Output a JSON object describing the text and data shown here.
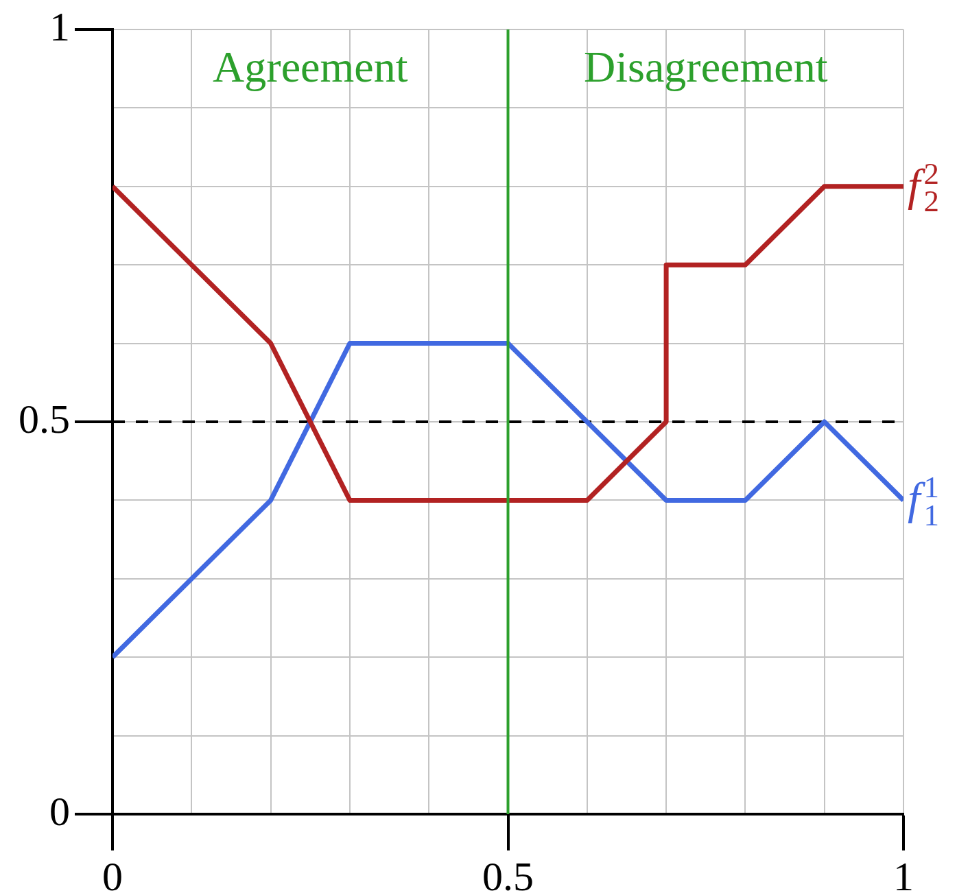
{
  "chart_data": {
    "type": "line",
    "series": [
      {
        "name": "f$_{1}$$^{1}$",
        "color": "#4169e1",
        "x": [
          0,
          0.2,
          0.3,
          0.5,
          0.7,
          0.8,
          0.9,
          1
        ],
        "values": [
          0.2,
          0.4,
          0.6,
          0.6,
          0.4,
          0.4,
          0.5,
          0.4
        ]
      },
      {
        "name": "f$_{2}$$^{2}$",
        "color": "#b22222",
        "x": [
          0,
          0.2,
          0.3,
          0.6,
          0.7,
          0.7,
          0.8,
          0.9,
          1
        ],
        "values": [
          0.8,
          0.6,
          0.4,
          0.4,
          0.5,
          0.7,
          0.7,
          0.8,
          0.8
        ]
      }
    ],
    "xlim": [
      0,
      1
    ],
    "ylim": [
      0,
      1
    ],
    "xticks": [
      0,
      {
        "value": 0.1,
        "label": null
      },
      {
        "value": 0.2,
        "label": null
      },
      {
        "value": 0.3,
        "label": null
      },
      {
        "value": 0.4,
        "label": null
      },
      0.5,
      {
        "value": 0.6,
        "label": null
      },
      {
        "value": 0.7,
        "label": null
      },
      {
        "value": 0.8,
        "label": null
      },
      {
        "value": 0.9,
        "label": null
      },
      1
    ],
    "yticks": [
      0,
      {
        "value": 0.1,
        "label": null
      },
      {
        "value": 0.2,
        "label": null
      },
      {
        "value": 0.3,
        "label": null
      },
      {
        "value": 0.4,
        "label": null
      },
      0.5,
      {
        "value": 0.6,
        "label": null
      },
      {
        "value": 0.7,
        "label": null
      },
      {
        "value": 0.8,
        "label": null
      },
      {
        "value": 0.9,
        "label": null
      },
      1
    ],
    "grid": true,
    "marker": "none",
    "line_style": "solid",
    "ref_lines": [
      {
        "axis": "y",
        "value": 0.5,
        "color": "#000000",
        "line_style": "dashed"
      },
      {
        "axis": "x",
        "value": 0.5,
        "color": "#2ca02c",
        "line_style": "solid"
      }
    ],
    "annotations": [
      "Agreement",
      "Disagreement"
    ]
  }
}
